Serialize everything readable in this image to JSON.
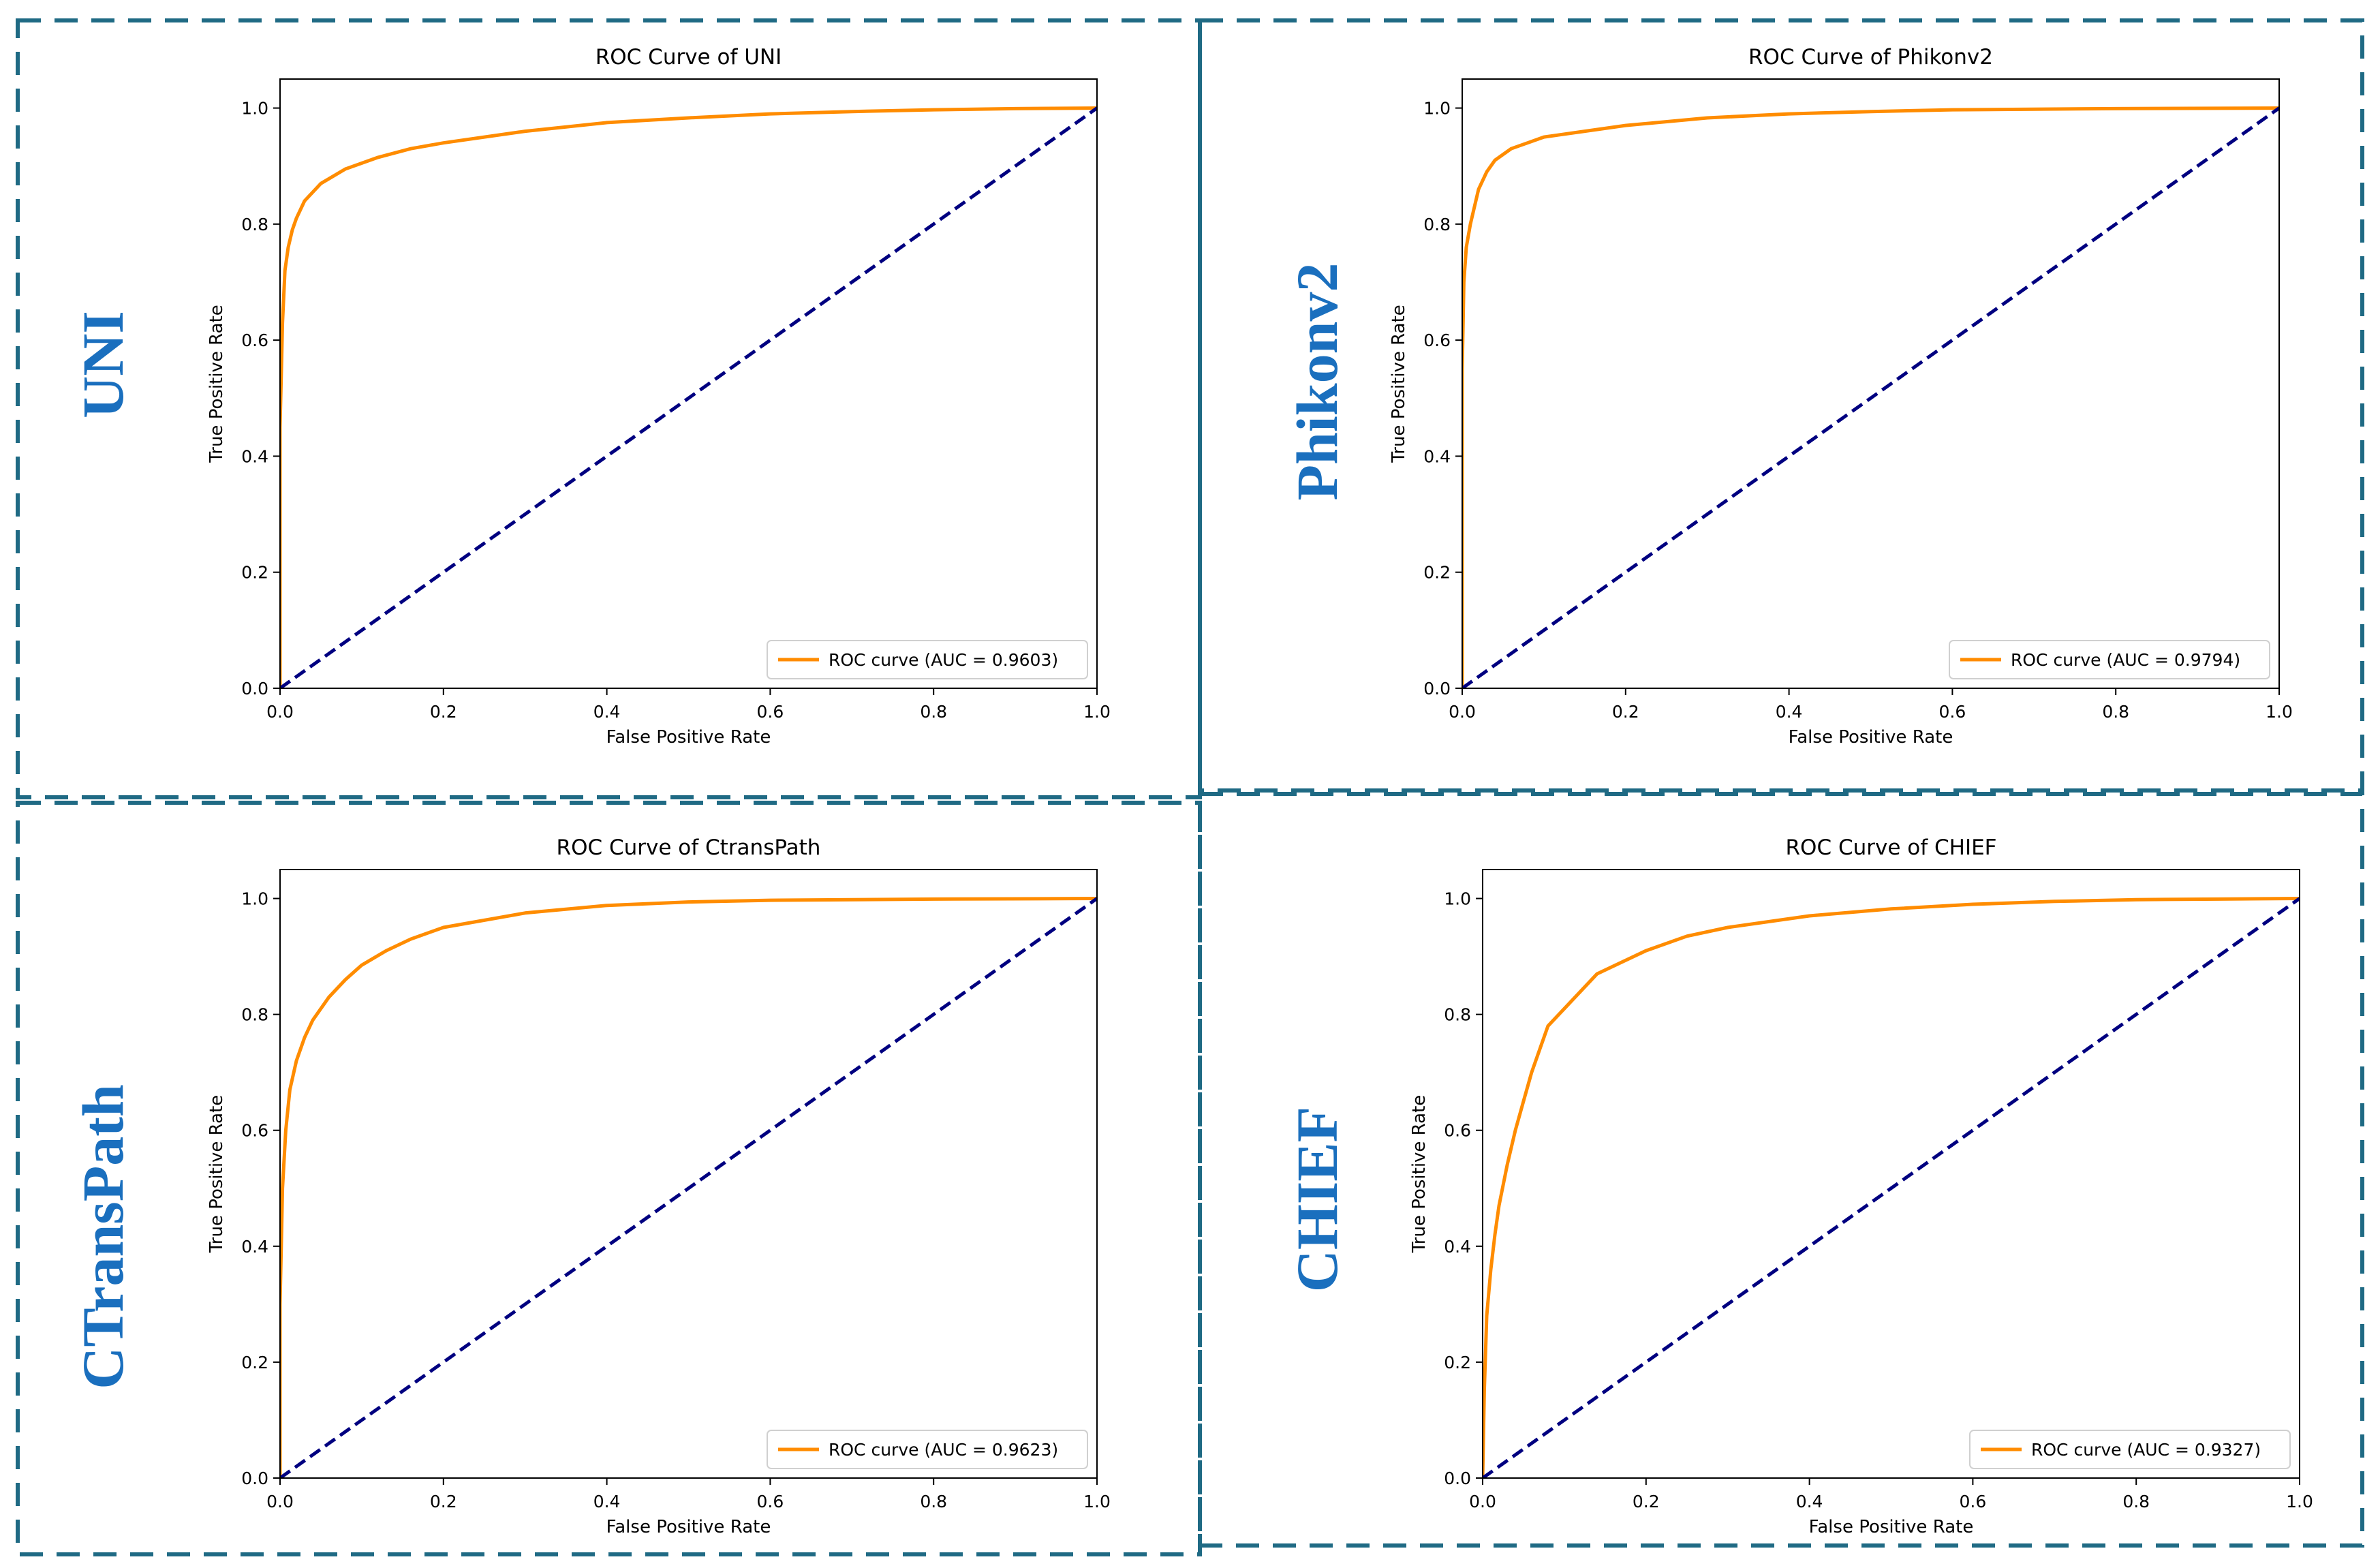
{
  "colors": {
    "frame": "#1f6a84",
    "model_label": "#1a6fbe",
    "roc": "#ff8c00",
    "diagonal": "#000080",
    "axis": "#000000"
  },
  "panels": [
    {
      "model_label": "UNI"
    },
    {
      "model_label": "Phikonv2"
    },
    {
      "model_label": "CTransPath"
    },
    {
      "model_label": "CHIEF"
    }
  ],
  "chart_data": [
    {
      "type": "line",
      "title": "ROC Curve of UNI",
      "xlabel": "False Positive Rate",
      "ylabel": "True Positive Rate",
      "xlim": [
        0,
        1
      ],
      "ylim": [
        0,
        1.05
      ],
      "xticks": [
        "0.0",
        "0.2",
        "0.4",
        "0.6",
        "0.8",
        "1.0"
      ],
      "yticks": [
        "0.0",
        "0.2",
        "0.4",
        "0.6",
        "0.8",
        "1.0"
      ],
      "legend": "lower-right",
      "series": [
        {
          "name": "ROC curve (AUC = 0.9603)",
          "auc": 0.9603,
          "x": [
            0,
            0,
            0.003,
            0.006,
            0.01,
            0.015,
            0.02,
            0.03,
            0.05,
            0.08,
            0.12,
            0.16,
            0.2,
            0.3,
            0.4,
            0.5,
            0.6,
            0.7,
            0.8,
            0.9,
            1.0
          ],
          "y": [
            0,
            0.45,
            0.63,
            0.72,
            0.76,
            0.79,
            0.81,
            0.84,
            0.87,
            0.895,
            0.915,
            0.93,
            0.94,
            0.96,
            0.975,
            0.983,
            0.99,
            0.994,
            0.997,
            0.999,
            1.0
          ]
        },
        {
          "name": "chance",
          "x": [
            0,
            1
          ],
          "y": [
            0,
            1
          ]
        }
      ]
    },
    {
      "type": "line",
      "title": "ROC Curve of Phikonv2",
      "xlabel": "False Positive Rate",
      "ylabel": "True Positive Rate",
      "xlim": [
        0,
        1
      ],
      "ylim": [
        0,
        1.05
      ],
      "xticks": [
        "0.0",
        "0.2",
        "0.4",
        "0.6",
        "0.8",
        "1.0"
      ],
      "yticks": [
        "0.0",
        "0.2",
        "0.4",
        "0.6",
        "0.8",
        "1.0"
      ],
      "legend": "lower-right",
      "series": [
        {
          "name": "ROC curve (AUC = 0.9794)",
          "auc": 0.9794,
          "x": [
            0,
            0,
            0.002,
            0.005,
            0.01,
            0.015,
            0.02,
            0.03,
            0.04,
            0.06,
            0.08,
            0.1,
            0.15,
            0.2,
            0.3,
            0.4,
            0.5,
            0.6,
            0.8,
            1.0
          ],
          "y": [
            0,
            0.55,
            0.7,
            0.76,
            0.8,
            0.83,
            0.86,
            0.89,
            0.91,
            0.93,
            0.94,
            0.95,
            0.96,
            0.97,
            0.983,
            0.99,
            0.994,
            0.997,
            0.999,
            1.0
          ]
        },
        {
          "name": "chance",
          "x": [
            0,
            1
          ],
          "y": [
            0,
            1
          ]
        }
      ]
    },
    {
      "type": "line",
      "title": "ROC Curve of CtransPath",
      "xlabel": "False Positive Rate",
      "ylabel": "True Positive Rate",
      "xlim": [
        0,
        1
      ],
      "ylim": [
        0,
        1.05
      ],
      "xticks": [
        "0.0",
        "0.2",
        "0.4",
        "0.6",
        "0.8",
        "1.0"
      ],
      "yticks": [
        "0.0",
        "0.2",
        "0.4",
        "0.6",
        "0.8",
        "1.0"
      ],
      "legend": "lower-right",
      "series": [
        {
          "name": "ROC curve (AUC = 0.9623)",
          "auc": 0.9623,
          "x": [
            0,
            0,
            0.003,
            0.007,
            0.012,
            0.02,
            0.03,
            0.04,
            0.06,
            0.08,
            0.1,
            0.13,
            0.16,
            0.2,
            0.3,
            0.4,
            0.5,
            0.6,
            0.8,
            1.0
          ],
          "y": [
            0,
            0.3,
            0.5,
            0.6,
            0.67,
            0.72,
            0.76,
            0.79,
            0.83,
            0.86,
            0.885,
            0.91,
            0.93,
            0.95,
            0.975,
            0.988,
            0.994,
            0.997,
            0.999,
            1.0
          ]
        },
        {
          "name": "chance",
          "x": [
            0,
            1
          ],
          "y": [
            0,
            1
          ]
        }
      ]
    },
    {
      "type": "line",
      "title": "ROC Curve of CHIEF",
      "xlabel": "False Positive Rate",
      "ylabel": "True Positive Rate",
      "xlim": [
        0,
        1
      ],
      "ylim": [
        0,
        1.05
      ],
      "xticks": [
        "0.0",
        "0.2",
        "0.4",
        "0.6",
        "0.8",
        "1.0"
      ],
      "yticks": [
        "0.0",
        "0.2",
        "0.4",
        "0.6",
        "0.8",
        "1.0"
      ],
      "legend": "lower-right",
      "series": [
        {
          "name": "ROC curve (AUC = 0.9327)",
          "auc": 0.9327,
          "x": [
            0,
            0.002,
            0.005,
            0.01,
            0.015,
            0.02,
            0.03,
            0.04,
            0.05,
            0.06,
            0.07,
            0.08,
            0.1,
            0.12,
            0.14,
            0.17,
            0.2,
            0.25,
            0.3,
            0.4,
            0.5,
            0.6,
            0.7,
            0.8,
            0.9,
            1.0
          ],
          "y": [
            0,
            0.15,
            0.28,
            0.36,
            0.42,
            0.47,
            0.54,
            0.6,
            0.65,
            0.7,
            0.74,
            0.78,
            0.81,
            0.84,
            0.87,
            0.89,
            0.91,
            0.935,
            0.95,
            0.97,
            0.982,
            0.99,
            0.995,
            0.998,
            0.999,
            1.0
          ]
        },
        {
          "name": "chance",
          "x": [
            0,
            1
          ],
          "y": [
            0,
            1
          ]
        }
      ]
    }
  ]
}
